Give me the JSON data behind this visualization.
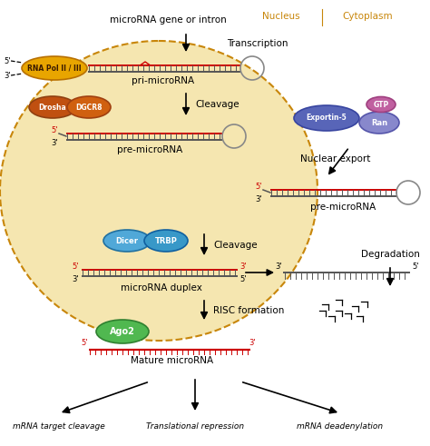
{
  "bg_color": "#FFFFFF",
  "nucleus_bg": "#F5E6B0",
  "nucleus_border": "#C8860A",
  "rna_red": "#CC0000",
  "rna_gray": "#555555",
  "nucleus_label": "Nucleus",
  "cytoplasm_label": "Cytoplasm",
  "top_label": "microRNA gene or intron",
  "transcription_label": "Transcription",
  "pri_label": "pri-microRNA",
  "cleavage_label1": "Cleavage",
  "pre_label1": "pre-microRNA",
  "nuclear_export_label": "Nuclear export",
  "pre_label2": "pre-microRNA",
  "cleavage_label2": "Cleavage",
  "duplex_label": "microRNA duplex",
  "risc_label": "RISC formation",
  "mature_label": "Mature microRNA",
  "degradation_label": "Degradation",
  "bottom1": "mRNA target cleavage",
  "bottom2": "Translational repression",
  "bottom3": "mRNA deadenylation",
  "rna_pol_text": "RNA Pol II / III",
  "drosha_text": "Drosha",
  "dgcr8_text": "DGCR8",
  "exportin_text": "Exportin-5",
  "ran_text": "Ran",
  "gtp_text": "GTP",
  "dicer_text": "Dicer",
  "trbp_text": "TRBP",
  "ago2_text": "Ago2"
}
